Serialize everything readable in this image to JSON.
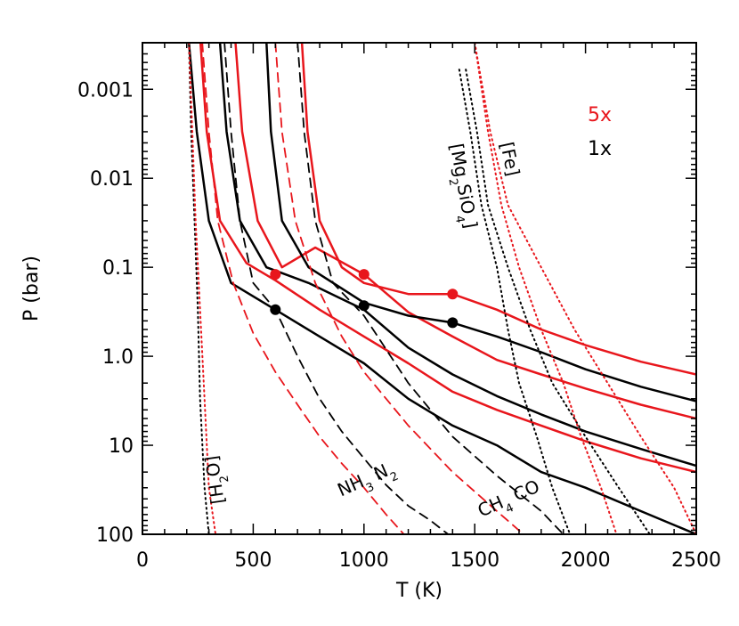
{
  "chart_data": {
    "type": "line",
    "xlabel": "T (K)",
    "ylabel": "P (bar)",
    "xlim": [
      0,
      2500
    ],
    "ylim": [
      100,
      0.0003
    ],
    "yscale": "log",
    "yaxis_inverted": true,
    "x_ticks": [
      0,
      500,
      1000,
      1500,
      2000,
      2500
    ],
    "x_tick_labels": [
      "0",
      "500",
      "1000",
      "1500",
      "2000",
      "2500"
    ],
    "y_ticks": [
      0.001,
      0.01,
      0.1,
      1.0,
      10,
      100
    ],
    "y_tick_labels": [
      "0.001",
      "0.01",
      "0.1",
      "1.0",
      "10",
      "100"
    ],
    "grid": false,
    "legend": [
      {
        "label": "5x",
        "color": "#e8161c",
        "position": "top-right"
      },
      {
        "label": "1x",
        "color": "#000000",
        "position": "top-right"
      }
    ],
    "colors": {
      "metallicity_5x": "#e8161c",
      "metallicity_1x": "#000000"
    },
    "series": [
      {
        "color": "#000000",
        "style": "solid",
        "points": [
          [
            210,
            0.0003
          ],
          [
            245,
            0.003
          ],
          [
            300,
            0.03
          ],
          [
            400,
            0.15
          ],
          [
            600,
            0.3
          ],
          [
            800,
            0.6
          ],
          [
            1000,
            1.2
          ],
          [
            1200,
            3
          ],
          [
            1400,
            6
          ],
          [
            1600,
            10
          ],
          [
            1800,
            20
          ],
          [
            2000,
            30
          ],
          [
            2250,
            55
          ],
          [
            2500,
            100
          ]
        ]
      },
      {
        "color": "#e8161c",
        "style": "solid",
        "points": [
          [
            262,
            0.0003
          ],
          [
            290,
            0.003
          ],
          [
            350,
            0.03
          ],
          [
            470,
            0.09
          ],
          [
            600,
            0.14
          ],
          [
            800,
            0.3
          ],
          [
            1000,
            0.6
          ],
          [
            1200,
            1.2
          ],
          [
            1400,
            2.5
          ],
          [
            1600,
            4
          ],
          [
            1800,
            6
          ],
          [
            2000,
            9
          ],
          [
            2250,
            14
          ],
          [
            2500,
            20
          ]
        ]
      },
      {
        "color": "#000000",
        "style": "solid",
        "points": [
          [
            350,
            0.0003
          ],
          [
            380,
            0.003
          ],
          [
            440,
            0.03
          ],
          [
            560,
            0.1
          ],
          [
            750,
            0.15
          ],
          [
            1000,
            0.3
          ],
          [
            1200,
            0.8
          ],
          [
            1400,
            1.6
          ],
          [
            1600,
            2.8
          ],
          [
            1800,
            4.5
          ],
          [
            2000,
            7
          ],
          [
            2250,
            11
          ],
          [
            2500,
            17
          ]
        ]
      },
      {
        "color": "#e8161c",
        "style": "solid",
        "points": [
          [
            420,
            0.0003
          ],
          [
            450,
            0.003
          ],
          [
            520,
            0.03
          ],
          [
            630,
            0.1
          ],
          [
            780,
            0.06
          ],
          [
            1000,
            0.12
          ],
          [
            1200,
            0.32
          ],
          [
            1400,
            0.6
          ],
          [
            1600,
            1.1
          ],
          [
            1800,
            1.6
          ],
          [
            2000,
            2.3
          ],
          [
            2250,
            3.5
          ],
          [
            2500,
            5
          ]
        ]
      },
      {
        "color": "#000000",
        "style": "solid",
        "points": [
          [
            560,
            0.0003
          ],
          [
            580,
            0.003
          ],
          [
            630,
            0.03
          ],
          [
            750,
            0.1
          ],
          [
            1000,
            0.25
          ],
          [
            1200,
            0.35
          ],
          [
            1400,
            0.42
          ],
          [
            1600,
            0.6
          ],
          [
            1800,
            0.9
          ],
          [
            2000,
            1.4
          ],
          [
            2250,
            2.2
          ],
          [
            2500,
            3.2
          ]
        ]
      },
      {
        "color": "#e8161c",
        "style": "solid",
        "points": [
          [
            720,
            0.0003
          ],
          [
            745,
            0.003
          ],
          [
            800,
            0.03
          ],
          [
            900,
            0.1
          ],
          [
            1000,
            0.15
          ],
          [
            1200,
            0.2
          ],
          [
            1400,
            0.2
          ],
          [
            1600,
            0.3
          ],
          [
            1800,
            0.5
          ],
          [
            2000,
            0.75
          ],
          [
            2250,
            1.15
          ],
          [
            2500,
            1.6
          ]
        ]
      },
      {
        "color": "#000000",
        "style": "dashed",
        "points": [
          [
            370,
            0.0003
          ],
          [
            400,
            0.003
          ],
          [
            440,
            0.03
          ],
          [
            500,
            0.15
          ],
          [
            600,
            0.3
          ],
          [
            700,
            1
          ],
          [
            800,
            3
          ],
          [
            900,
            7
          ],
          [
            1000,
            14
          ],
          [
            1100,
            28
          ],
          [
            1200,
            48
          ],
          [
            1300,
            70
          ],
          [
            1380,
            100
          ]
        ]
      },
      {
        "color": "#e8161c",
        "style": "dashed",
        "points": [
          [
            270,
            0.0003
          ],
          [
            300,
            0.003
          ],
          [
            340,
            0.03
          ],
          [
            410,
            0.15
          ],
          [
            500,
            0.55
          ],
          [
            600,
            1.5
          ],
          [
            700,
            3.5
          ],
          [
            800,
            8
          ],
          [
            900,
            16
          ],
          [
            1000,
            30
          ],
          [
            1100,
            60
          ],
          [
            1180,
            100
          ]
        ]
      },
      {
        "color": "#000000",
        "style": "dashed",
        "points": [
          [
            700,
            0.0003
          ],
          [
            730,
            0.003
          ],
          [
            780,
            0.03
          ],
          [
            860,
            0.15
          ],
          [
            1000,
            0.35
          ],
          [
            1200,
            2
          ],
          [
            1400,
            8
          ],
          [
            1600,
            22
          ],
          [
            1800,
            55
          ],
          [
            1900,
            100
          ]
        ]
      },
      {
        "color": "#e8161c",
        "style": "dashed",
        "points": [
          [
            600,
            0.0003
          ],
          [
            630,
            0.003
          ],
          [
            690,
            0.03
          ],
          [
            780,
            0.15
          ],
          [
            900,
            0.6
          ],
          [
            1000,
            1.5
          ],
          [
            1200,
            6
          ],
          [
            1400,
            20
          ],
          [
            1600,
            55
          ],
          [
            1720,
            100
          ]
        ]
      },
      {
        "color": "#000000",
        "style": "dotted",
        "points": [
          [
            210,
            0.0003
          ],
          [
            220,
            0.003
          ],
          [
            235,
            0.03
          ],
          [
            250,
            0.3
          ],
          [
            260,
            3
          ],
          [
            280,
            30
          ],
          [
            300,
            100
          ]
        ]
      },
      {
        "color": "#e8161c",
        "style": "dotted",
        "points": [
          [
            210,
            0.0003
          ],
          [
            225,
            0.003
          ],
          [
            240,
            0.03
          ],
          [
            260,
            0.3
          ],
          [
            280,
            3
          ],
          [
            300,
            30
          ],
          [
            330,
            100
          ]
        ]
      },
      {
        "color": "#000000",
        "style": "dotted",
        "points": [
          [
            1430,
            0.0006
          ],
          [
            1480,
            0.003
          ],
          [
            1530,
            0.02
          ],
          [
            1600,
            0.1
          ],
          [
            1650,
            0.5
          ],
          [
            1700,
            2
          ],
          [
            1780,
            8
          ],
          [
            1850,
            30
          ],
          [
            1930,
            100
          ]
        ]
      },
      {
        "color": "#000000",
        "style": "dotted",
        "points": [
          [
            1460,
            0.0006
          ],
          [
            1510,
            0.003
          ],
          [
            1560,
            0.02
          ],
          [
            1650,
            0.1
          ],
          [
            1750,
            0.5
          ],
          [
            1850,
            2
          ],
          [
            2000,
            8
          ],
          [
            2150,
            30
          ],
          [
            2290,
            100
          ]
        ]
      },
      {
        "color": "#e8161c",
        "style": "dotted",
        "points": [
          [
            1500,
            0.0003
          ],
          [
            1560,
            0.003
          ],
          [
            1620,
            0.02
          ],
          [
            1700,
            0.1
          ],
          [
            1800,
            0.5
          ],
          [
            1900,
            2
          ],
          [
            1980,
            8
          ],
          [
            2070,
            30
          ],
          [
            2140,
            100
          ]
        ]
      },
      {
        "color": "#e8161c",
        "style": "dotted",
        "points": [
          [
            1500,
            0.0003
          ],
          [
            1570,
            0.003
          ],
          [
            1650,
            0.02
          ],
          [
            1800,
            0.1
          ],
          [
            1950,
            0.5
          ],
          [
            2100,
            2
          ],
          [
            2250,
            8
          ],
          [
            2400,
            30
          ],
          [
            2500,
            100
          ]
        ]
      }
    ],
    "markers": [
      {
        "x": 600,
        "y": 0.12,
        "color": "#e8161c"
      },
      {
        "x": 1000,
        "y": 0.12,
        "color": "#e8161c"
      },
      {
        "x": 1400,
        "y": 0.2,
        "color": "#e8161c"
      },
      {
        "x": 600,
        "y": 0.3,
        "color": "#000000"
      },
      {
        "x": 1000,
        "y": 0.27,
        "color": "#000000"
      },
      {
        "x": 1400,
        "y": 0.42,
        "color": "#000000"
      }
    ],
    "annotations": [
      {
        "id": "h2o",
        "text": "[H",
        "sub": "2",
        "text2": "O]"
      },
      {
        "id": "nh3n2",
        "text": "NH",
        "sub": "3",
        "text2": " N",
        "sub2": "2"
      },
      {
        "id": "ch4co",
        "text": "CH",
        "sub": "4",
        "text2": " CO"
      },
      {
        "id": "mg2sio4",
        "text": "[Mg",
        "sub": "2",
        "text2": "SiO",
        "sub2": "4",
        "text3": "]"
      },
      {
        "id": "fe",
        "text": "[Fe]"
      }
    ]
  }
}
